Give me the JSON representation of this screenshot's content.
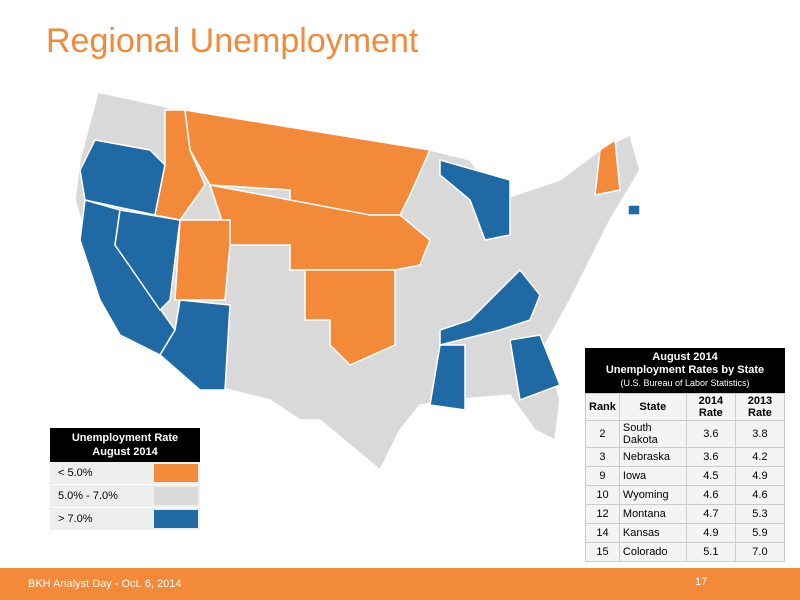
{
  "header": {
    "title": "Regional Unemployment"
  },
  "legend": {
    "title_lines": [
      "Unemployment Rate",
      "August 2014"
    ],
    "items": [
      {
        "label": "< 5.0%",
        "color": "#f28a3a"
      },
      {
        "label": "5.0% - 7.0%",
        "color": "#d9d9d9"
      },
      {
        "label": "> 7.0%",
        "color": "#1f6aa5"
      }
    ]
  },
  "table": {
    "title_lines": [
      "August 2014",
      "Unemployment Rates by State"
    ],
    "subtitle": "(U.S. Bureau of Labor Statistics)",
    "headers": [
      "Rank",
      "State",
      "2014 Rate",
      "2013 Rate"
    ],
    "rows": [
      [
        2,
        "South Dakota",
        3.6,
        3.8
      ],
      [
        3,
        "Nebraska",
        3.6,
        4.2
      ],
      [
        9,
        "Iowa",
        4.5,
        4.9
      ],
      [
        10,
        "Wyoming",
        4.6,
        4.6
      ],
      [
        12,
        "Montana",
        4.7,
        5.3
      ],
      [
        14,
        "Kansas",
        4.9,
        5.9
      ],
      [
        15,
        "Colorado",
        5.1,
        7.0
      ]
    ]
  },
  "footer": {
    "text": "BKH Analyst Day - Oct. 6, 2014",
    "page": 17
  }
}
